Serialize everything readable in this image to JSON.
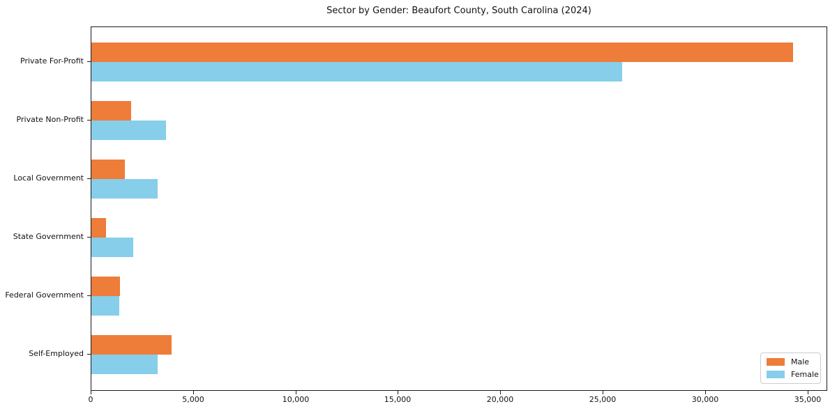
{
  "chart_data": {
    "type": "bar",
    "orientation": "horizontal",
    "title": "Sector by Gender: Beaufort County, South Carolina (2024)",
    "xlabel": "",
    "ylabel": "",
    "categories": [
      "Private For-Profit",
      "Private Non-Profit",
      "Local Government",
      "State Government",
      "Federal Government",
      "Self-Employed"
    ],
    "series": [
      {
        "name": "Male",
        "color": "#ED7D39",
        "values": [
          34250,
          1950,
          1650,
          700,
          1400,
          3900
        ]
      },
      {
        "name": "Female",
        "color": "#87CEEB",
        "values": [
          25900,
          3650,
          3250,
          2050,
          1350,
          3250
        ]
      }
    ],
    "xlim": [
      0,
      35960
    ],
    "xticks": [
      0,
      5000,
      10000,
      15000,
      20000,
      25000,
      30000,
      35000
    ],
    "xtick_labels": [
      "0",
      "5,000",
      "10,000",
      "15,000",
      "20,000",
      "25,000",
      "30,000",
      "35,000"
    ],
    "grid": false,
    "legend": {
      "position": "lower right",
      "entries": [
        "Male",
        "Female"
      ]
    }
  }
}
